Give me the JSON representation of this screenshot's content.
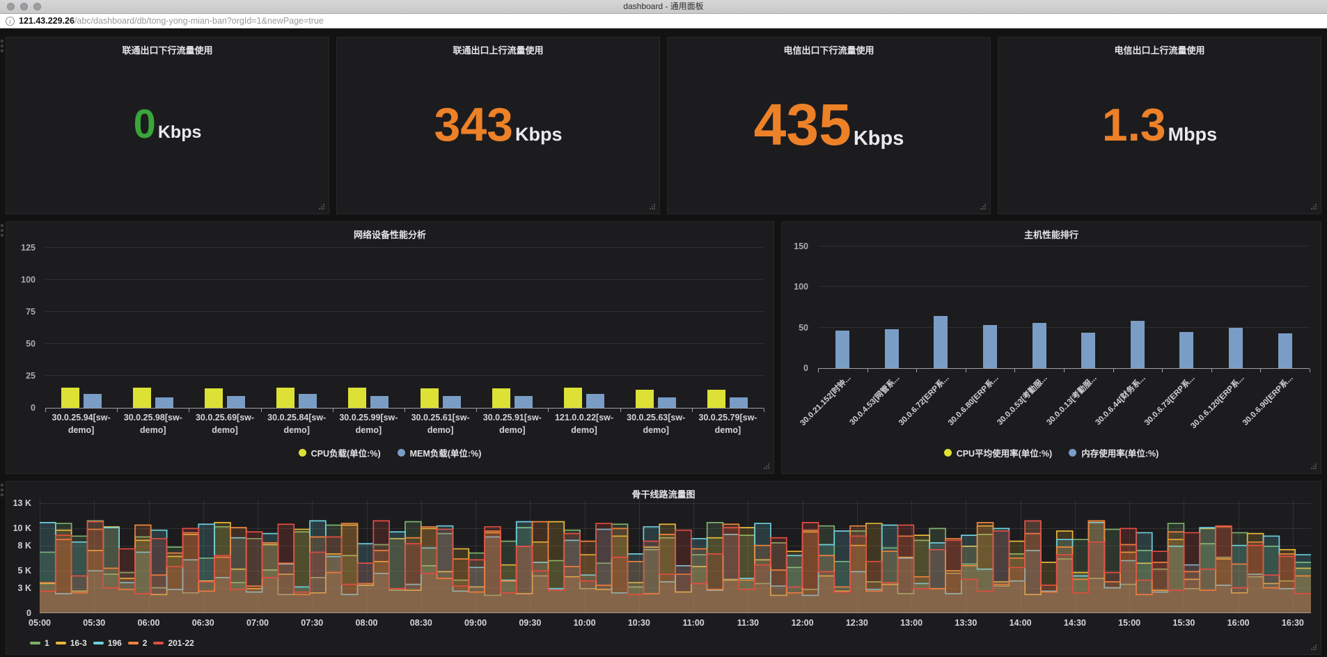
{
  "browser": {
    "window_title": "dashboard - 通用面板",
    "url_host": "121.43.229.26",
    "url_path": "/abc/dashboard/db/tong-yong-mian-ban?orgId=1&newPage=true"
  },
  "stat_panels": [
    {
      "title": "联通出口下行流量使用",
      "value": "0",
      "unit": "Kbps",
      "color": "#3aa53a"
    },
    {
      "title": "联通出口上行流量使用",
      "value": "343",
      "unit": "Kbps",
      "color": "#ed8128"
    },
    {
      "title": "电信出口下行流量使用",
      "value": "435",
      "unit": "Kbps",
      "color": "#ed8128"
    },
    {
      "title": "电信出口上行流量使用",
      "value": "1.3",
      "unit": "Mbps",
      "color": "#ed8128"
    }
  ],
  "chart_data": [
    {
      "type": "bar",
      "title": "网络设备性能分析",
      "categories": [
        "30.0.25.94[sw-demo]",
        "30.0.25.98[sw-demo]",
        "30.0.25.69[sw-demo]",
        "30.0.25.84[sw-demo]",
        "30.0.25.99[sw-demo]",
        "30.0.25.61[sw-demo]",
        "30.0.25.91[sw-demo]",
        "121.0.0.22[sw-demo]",
        "30.0.25.63[sw-demo]",
        "30.0.25.79[sw-demo]"
      ],
      "series": [
        {
          "name": "CPU负载(单位:%)",
          "color": "#dde135",
          "values": [
            16,
            16,
            15,
            16,
            16,
            15,
            15,
            16,
            14,
            14
          ]
        },
        {
          "name": "MEM负载(单位:%)",
          "color": "#7a9dc6",
          "values": [
            11,
            8,
            9,
            11,
            9,
            9,
            9,
            11,
            8,
            8
          ]
        }
      ],
      "ylim": [
        0,
        128
      ],
      "yticks": [
        0,
        25,
        50,
        75,
        100,
        125
      ],
      "legend_position": "bottom",
      "grid": true
    },
    {
      "type": "bar",
      "title": "主机性能排行",
      "categories": [
        "30.0.21.152[时钟...",
        "30.0.4.53[网管系...",
        "30.0.6.72[ERP系...",
        "30.0.6.80[ERP系...",
        "30.0.0.53[考勤服...",
        "30.0.0.13[考勤服...",
        "30.0.6.44[财务系...",
        "30.0.6.73[ERP系...",
        "30.0.6.120[ERP系...",
        "30.0.6.90[ERP系..."
      ],
      "series": [
        {
          "name": "CPU平均使用率(单位:%)",
          "color": "#dde135",
          "values": [
            0,
            0,
            0,
            0,
            0,
            0,
            0,
            0,
            0,
            0
          ]
        },
        {
          "name": "内存使用率(单位:%)",
          "color": "#7a9dc6",
          "values": [
            46,
            48,
            64,
            53,
            56,
            44,
            58,
            45,
            50,
            43
          ]
        }
      ],
      "ylim": [
        0,
        150
      ],
      "yticks": [
        0,
        50,
        100,
        150
      ],
      "legend_position": "bottom",
      "x_labels_rotated_deg": -45,
      "grid": true
    },
    {
      "type": "line",
      "title": "骨干线路流量图",
      "style": "stepped-area",
      "x_start": "05:00",
      "x_end": "16:40",
      "total_minutes": 700,
      "x_tick_interval_min": 30,
      "xticks": [
        "05:00",
        "05:30",
        "06:00",
        "06:30",
        "07:00",
        "07:30",
        "08:00",
        "08:30",
        "09:00",
        "09:30",
        "10:00",
        "10:30",
        "11:00",
        "11:30",
        "12:00",
        "12:30",
        "13:00",
        "13:30",
        "14:00",
        "14:30",
        "15:00",
        "15:30",
        "16:00",
        "16:30"
      ],
      "ylim_k": [
        0,
        13.4
      ],
      "yticks_k": [
        0,
        3,
        5,
        8,
        10,
        13
      ],
      "ytick_labels": [
        "0",
        "3 K",
        "5 K",
        "8 K",
        "10 K",
        "13 K"
      ],
      "fill_opacity": 0.18,
      "grid": true,
      "legend_position": "bottom-left",
      "series": [
        {
          "name": "1",
          "color": "#7eb26d",
          "values_k": [
            7.2,
            10.6,
            9.1,
            10.9,
            4.6,
            4.8,
            9.0,
            3.0,
            7.8,
            2.4,
            6.5,
            10.2,
            3.6,
            8.8,
            5.1,
            2.2,
            9.6,
            4.2,
            10.4,
            6.8,
            3.3,
            8.1,
            2.7,
            10.8,
            5.6,
            9.4,
            3.9,
            7.1,
            2.1,
            8.5,
            10.1,
            4.4,
            6.2,
            9.8,
            2.9,
            5.9,
            10.5,
            3.1,
            7.5,
            8.9,
            2.5,
            6.9,
            10.7,
            4.0,
            9.2,
            3.5,
            8.3,
            5.4,
            2.8,
            10.3,
            6.1,
            9.7,
            3.7,
            7.7,
            2.3,
            8.6,
            10.0,
            4.7,
            5.8,
            9.3,
            3.2,
            7.0,
            10.9,
            2.6,
            6.4,
            8.7,
            4.1,
            9.9,
            3.4,
            7.4,
            5.2,
            10.6,
            2.9,
            8.2,
            6.6,
            9.5,
            4.3,
            7.9,
            3.8,
            6.0
          ]
        },
        {
          "name": "16-3",
          "color": "#eab839",
          "values_k": [
            3.5,
            9.8,
            2.6,
            7.4,
            10.2,
            4.1,
            8.6,
            2.2,
            6.7,
            9.3,
            3.8,
            10.7,
            5.2,
            2.9,
            8.1,
            4.6,
            9.9,
            2.4,
            7.0,
            10.4,
            3.3,
            6.1,
            8.8,
            2.7,
            10.0,
            4.9,
            7.6,
            3.1,
            9.5,
            5.7,
            2.3,
            8.4,
            10.8,
            4.3,
            6.9,
            2.8,
            9.1,
            3.6,
            7.8,
            10.5,
            2.5,
            5.5,
            8.9,
            3.9,
            10.1,
            6.3,
            2.1,
            7.3,
            9.6,
            4.4,
            2.6,
            8.0,
            10.6,
            3.4,
            6.6,
            9.2,
            2.9,
            5.0,
            7.9,
            10.3,
            3.7,
            8.5,
            2.2,
            6.0,
            9.7,
            4.8,
            10.9,
            3.0,
            7.2,
            5.9,
            2.7,
            8.7,
            4.0,
            10.0,
            6.4,
            2.4,
            9.4,
            3.5,
            7.5,
            5.3
          ]
        },
        {
          "name": "196",
          "color": "#6ed0e0",
          "values_k": [
            10.7,
            2.3,
            8.4,
            5.0,
            10.1,
            3.6,
            7.2,
            9.8,
            2.8,
            6.3,
            10.5,
            4.2,
            8.9,
            2.5,
            9.4,
            5.8,
            3.1,
            10.9,
            6.7,
            2.2,
            8.2,
            4.7,
            9.6,
            3.4,
            7.7,
            10.3,
            2.6,
            5.4,
            9.0,
            3.9,
            10.8,
            6.0,
            2.9,
            8.6,
            4.5,
            9.9,
            2.4,
            7.0,
            10.2,
            3.7,
            5.6,
            8.8,
            2.7,
            9.3,
            4.1,
            10.6,
            3.2,
            6.8,
            2.1,
            8.1,
            9.7,
            4.9,
            2.8,
            10.4,
            6.5,
            3.5,
            8.3,
            2.3,
            9.2,
            5.2,
            10.0,
            3.8,
            7.4,
            2.6,
            8.7,
            4.4,
            10.7,
            3.0,
            6.2,
            9.5,
            2.5,
            7.9,
            5.7,
            10.1,
            3.3,
            8.0,
            4.6,
            9.1,
            2.9,
            6.9
          ]
        },
        {
          "name": "2",
          "color": "#ef843c",
          "values_k": [
            3.6,
            8.7,
            2.4,
            9.9,
            5.3,
            2.8,
            10.4,
            4.5,
            7.1,
            9.5,
            2.6,
            6.6,
            10.1,
            3.2,
            8.3,
            5.9,
            2.2,
            9.0,
            4.8,
            10.6,
            3.5,
            7.4,
            2.9,
            8.9,
            10.2,
            4.1,
            6.4,
            2.5,
            9.7,
            3.8,
            7.9,
            10.8,
            2.7,
            5.5,
            8.5,
            3.3,
            10.0,
            6.1,
            2.3,
            9.3,
            4.6,
            7.6,
            2.8,
            10.5,
            3.9,
            8.0,
            5.1,
            2.4,
            9.8,
            6.8,
            3.1,
            10.3,
            2.6,
            7.3,
            9.1,
            4.3,
            2.9,
            8.8,
            5.6,
            10.7,
            3.4,
            6.5,
            9.4,
            2.5,
            7.8,
            4.0,
            10.9,
            3.7,
            8.1,
            2.2,
            6.0,
            9.6,
            4.9,
            2.7,
            10.2,
            5.8,
            8.4,
            3.0,
            7.0,
            4.4
          ]
        },
        {
          "name": "201-22",
          "color": "#e24d42",
          "values_k": [
            2.6,
            9.2,
            4.4,
            10.8,
            3.0,
            7.6,
            2.3,
            8.8,
            5.5,
            10.0,
            3.7,
            6.8,
            2.8,
            9.6,
            4.2,
            10.5,
            2.5,
            7.2,
            9.0,
            3.4,
            5.9,
            10.9,
            2.9,
            8.2,
            4.7,
            9.9,
            3.2,
            6.3,
            10.2,
            2.4,
            7.9,
            5.0,
            2.7,
            9.4,
            3.8,
            10.6,
            6.6,
            2.2,
            8.5,
            4.6,
            9.8,
            3.5,
            7.0,
            10.1,
            2.8,
            5.7,
            8.9,
            3.1,
            10.7,
            4.9,
            2.5,
            9.1,
            6.1,
            3.6,
            10.4,
            2.9,
            7.5,
            8.6,
            4.0,
            2.6,
            9.7,
            5.4,
            10.9,
            3.3,
            6.9,
            2.4,
            8.4,
            4.8,
            10.0,
            3.9,
            7.3,
            2.7,
            9.5,
            5.2,
            10.3,
            3.0,
            8.0,
            4.5,
            6.7,
            2.3
          ]
        }
      ]
    }
  ]
}
